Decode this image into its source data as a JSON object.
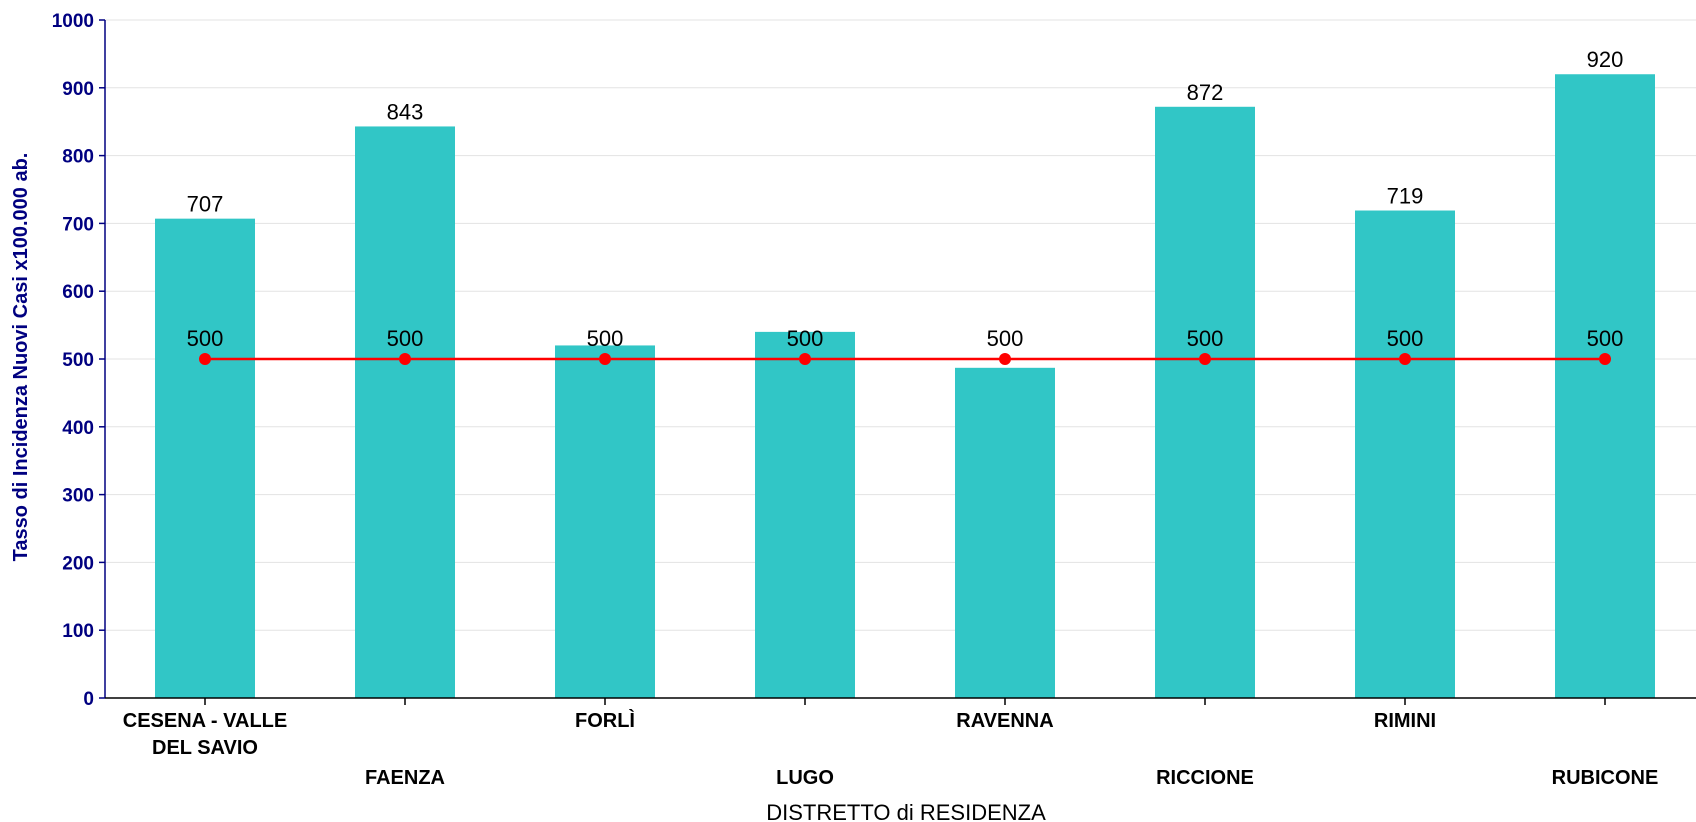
{
  "chart_data": {
    "type": "bar",
    "xlabel": "DISTRETTO di RESIDENZA",
    "ylabel": "Tasso di Incidenza Nuovi Casi x100.000 ab.",
    "ylim": [
      0,
      1000
    ],
    "yticks": [
      0,
      100,
      200,
      300,
      400,
      500,
      600,
      700,
      800,
      900,
      1000
    ],
    "grid": true,
    "categories": [
      [
        "CESENA - VALLE",
        "DEL SAVIO"
      ],
      [
        "FAENZA"
      ],
      [
        "FORLÌ"
      ],
      [
        "LUGO"
      ],
      [
        "RAVENNA"
      ],
      [
        "RICCIONE"
      ],
      [
        "RIMINI"
      ],
      [
        "RUBICONE"
      ]
    ],
    "series": [
      {
        "type": "bar",
        "values": [
          707,
          843,
          520,
          540,
          487,
          872,
          719,
          920
        ],
        "data_labels": [
          "707",
          "843",
          "",
          "",
          "",
          "872",
          "719",
          "920"
        ],
        "color": "#31C6C6"
      },
      {
        "type": "line",
        "values": [
          500,
          500,
          500,
          500,
          500,
          500,
          500,
          500
        ],
        "data_labels": [
          "500",
          "500",
          "500",
          "500",
          "500",
          "500",
          "500",
          "500"
        ],
        "color": "#FF0000"
      }
    ],
    "colors": {
      "axis": "#000080",
      "grid": "#E3E3E3",
      "baseline": "#000000"
    }
  }
}
